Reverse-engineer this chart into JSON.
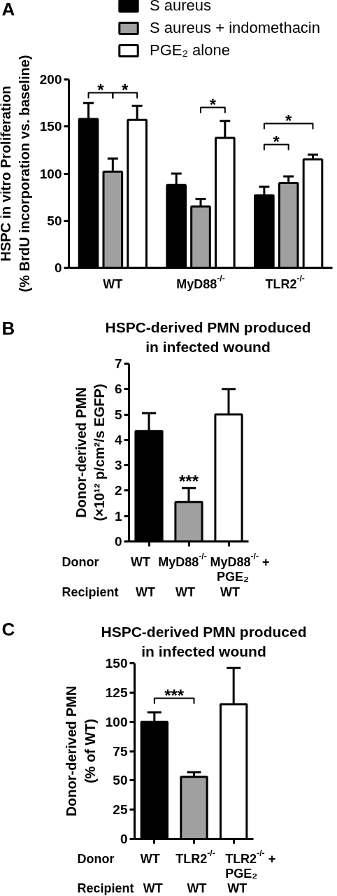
{
  "chart_data": [
    {
      "type": "bar",
      "categories": [
        "WT",
        "MyD88$^{-/-}$",
        "TLR2$^{-/-}$"
      ],
      "ylabel": "HSPC in vitro Proliferation\n(% BrdU incorporation vs. baseline)",
      "series": [
        {
          "name": "S aureus",
          "color": "#000000",
          "values": [
            158,
            88,
            77
          ],
          "errors": [
            [
              158,
              175
            ],
            [
              88,
              100
            ],
            [
              77,
              86
            ]
          ]
        },
        {
          "name": "S aureus + indomethacin",
          "color": "#a0a0a0",
          "values": [
            102,
            65,
            90
          ],
          "errors": [
            [
              102,
              116
            ],
            [
              65,
              73
            ],
            [
              90,
              97
            ]
          ]
        },
        {
          "name": "PGE₂ alone",
          "color": "#ffffff",
          "values": [
            157,
            138,
            115
          ],
          "errors": [
            [
              157,
              172
            ],
            [
              138,
              156
            ],
            [
              115,
              120
            ]
          ]
        }
      ],
      "ylim": [
        0,
        200
      ],
      "yticks": [
        0,
        50,
        100,
        150,
        200
      ],
      "legend": "top",
      "annotations": [
        "A",
        "*",
        "*",
        "*",
        "*",
        "*"
      ]
    },
    {
      "type": "bar",
      "title": "HSPC-derived PMN produced\nin infected wound",
      "xlabel": "Donor\n\nRecipient",
      "categories": [
        "WT\n\nWT",
        "MyD88$^{-/-}$\n\nWT",
        "MyD88$^{-/-}$ +\nPGE₂\nWT"
      ],
      "values": [
        4.35,
        1.55,
        5.0
      ],
      "colors": [
        "#000000",
        "#a0a0a0",
        "#ffffff"
      ],
      "errors": [
        [
          4.35,
          5.05
        ],
        [
          1.55,
          2.1
        ],
        [
          5.0,
          6.0
        ]
      ],
      "ylabel": "Donor-derived PMN\n(×10¹² p/cm²/s EGFP)",
      "ylim": [
        0,
        7
      ],
      "yticks": [
        0,
        1,
        2,
        3,
        4,
        5,
        6,
        7
      ],
      "annotations": [
        "B",
        "***"
      ]
    },
    {
      "type": "bar",
      "title": "HSPC-derived PMN produced\nin infected wound",
      "xlabel": "Donor\n\nRecipient",
      "categories": [
        "WT\n\nWT",
        "TLR2$^{-/-}$\n\nWT",
        "TLR2$^{-/-}$ +\nPGE₂\nWT"
      ],
      "values": [
        100,
        53,
        115
      ],
      "colors": [
        "#000000",
        "#a0a0a0",
        "#ffffff"
      ],
      "errors": [
        [
          100,
          108
        ],
        [
          53,
          57
        ],
        [
          115,
          146
        ]
      ],
      "ylabel": "Donor-derived PMN\n(% of WT)",
      "ylim": [
        0,
        150
      ],
      "yticks": [
        0,
        25,
        50,
        75,
        100,
        125,
        150
      ],
      "annotations": [
        "C",
        "***"
      ]
    }
  ]
}
